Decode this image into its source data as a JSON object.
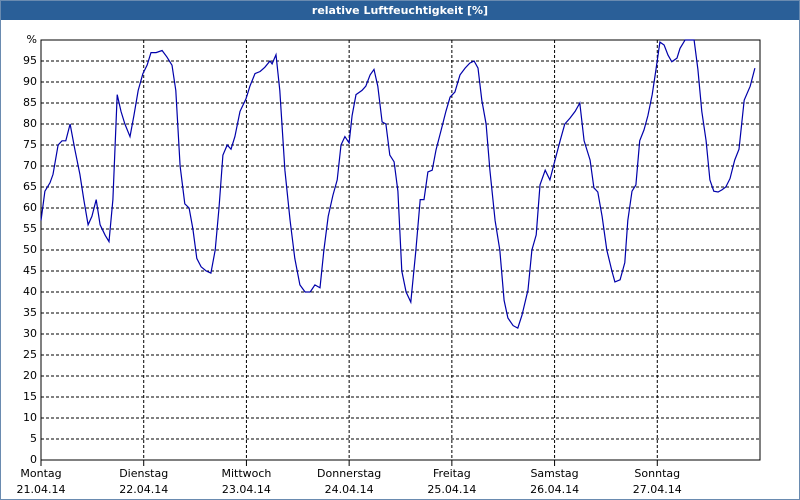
{
  "chart_data": {
    "type": "line",
    "title": "relative Luftfeuchtigkeit [%]",
    "color": "#0000aa",
    "grid": true,
    "xlim": [
      0,
      168
    ],
    "xticks": [
      {
        "value": 0,
        "label": [
          "Montag",
          "21.04.14"
        ]
      },
      {
        "value": 24,
        "label": [
          "Dienstag",
          "22.04.14"
        ]
      },
      {
        "value": 48,
        "label": [
          "Mittwoch",
          "23.04.14"
        ]
      },
      {
        "value": 72,
        "label": [
          "Donnerstag",
          "24.04.14"
        ]
      },
      {
        "value": 96,
        "label": [
          "Freitag",
          "25.04.14"
        ]
      },
      {
        "value": 120,
        "label": [
          "Samstag",
          "26.04.14"
        ]
      },
      {
        "value": 144,
        "label": [
          "Sonntag",
          "27.04.14"
        ]
      }
    ],
    "ylim": [
      0,
      100
    ],
    "yticks": [
      0,
      5,
      10,
      15,
      20,
      25,
      30,
      35,
      40,
      45,
      50,
      55,
      60,
      65,
      70,
      75,
      80,
      85,
      90,
      95,
      {
        "value": 100,
        "label": "%"
      }
    ],
    "x": [
      0,
      0.9,
      2.1,
      2.8,
      4.0,
      4.9,
      5.8,
      6.8,
      7.9,
      9.1,
      10.0,
      11.0,
      11.9,
      12.9,
      13.8,
      15.0,
      15.9,
      16.8,
      17.8,
      18.7,
      19.6,
      20.8,
      21.7,
      22.7,
      23.8,
      24.8,
      25.7,
      26.9,
      28.3,
      29.4,
      30.6,
      31.5,
      32.5,
      33.6,
      34.6,
      35.5,
      36.4,
      37.4,
      38.6,
      39.7,
      40.7,
      41.6,
      42.5,
      43.5,
      44.4,
      45.3,
      46.5,
      47.9,
      48.8,
      50.0,
      51.2,
      52.3,
      53.5,
      54.0,
      54.9,
      55.8,
      57.0,
      58.2,
      59.3,
      60.5,
      61.7,
      62.9,
      64.0,
      65.2,
      66.1,
      67.1,
      68.2,
      69.2,
      70.1,
      71.0,
      72.0,
      72.7,
      73.6,
      75.0,
      75.9,
      76.9,
      77.8,
      78.7,
      79.7,
      80.6,
      81.5,
      82.5,
      83.4,
      84.3,
      85.3,
      86.4,
      87.6,
      88.6,
      89.5,
      90.4,
      91.4,
      92.3,
      93.5,
      94.6,
      95.6,
      96.7,
      97.9,
      99.1,
      100.2,
      101.2,
      102.1,
      103.0,
      104.0,
      104.9,
      106.1,
      107.2,
      108.2,
      109.1,
      110.3,
      111.4,
      112.4,
      113.8,
      114.7,
      115.7,
      116.6,
      117.8,
      118.9,
      120.1,
      121.3,
      122.4,
      123.6,
      124.8,
      125.9,
      126.9,
      128.3,
      129.2,
      130.1,
      131.1,
      132.2,
      133.4,
      134.1,
      135.3,
      136.4,
      137.1,
      138.1,
      139.0,
      139.9,
      140.9,
      141.8,
      142.8,
      143.7,
      144.6,
      145.6,
      146.5,
      147.4,
      148.6,
      149.3,
      150.5,
      151.6,
      152.6,
      153.5,
      154.4,
      155.4,
      156.3,
      157.2,
      158.2,
      159.1,
      160.0,
      161.0,
      162.1,
      163.1,
      164.3,
      165.7,
      166.8
    ],
    "values": [
      57,
      64,
      66,
      68,
      75,
      76,
      76,
      80,
      74,
      68,
      62,
      56,
      58,
      62,
      56,
      53.5,
      52,
      62,
      87,
      83,
      80,
      77,
      82,
      88,
      92,
      94,
      97,
      97,
      97.5,
      96,
      94,
      88,
      70,
      61,
      60,
      55,
      48,
      46,
      45,
      44.5,
      50,
      60,
      72.6,
      75,
      74,
      77,
      83,
      86,
      89,
      92,
      92.5,
      93.5,
      95,
      94.3,
      96.5,
      88,
      69,
      57,
      48,
      41.7,
      40,
      40,
      41.7,
      41,
      50,
      58,
      63,
      66.7,
      75,
      77,
      75.5,
      82,
      87,
      88,
      89,
      91.7,
      93,
      89,
      80.5,
      80,
      72.6,
      71,
      64,
      45,
      40,
      37.6,
      50,
      62,
      62,
      68.6,
      69,
      73.8,
      78.6,
      83,
      86.4,
      87.6,
      91.7,
      93.3,
      94.5,
      95,
      93.3,
      85.7,
      80,
      69,
      57,
      50,
      38,
      33.8,
      32,
      31.4,
      34.5,
      40.5,
      50,
      53.6,
      65.5,
      69,
      66.7,
      71.4,
      76,
      80,
      81.4,
      83,
      85,
      76,
      71.4,
      64.8,
      63.8,
      58,
      50,
      45,
      42.4,
      42.9,
      47,
      57,
      64,
      65.5,
      76,
      78.6,
      82,
      87,
      93,
      99.5,
      98.8,
      96.4,
      94.8,
      95.7,
      98,
      100,
      100,
      100,
      93,
      83,
      76,
      66.7,
      64,
      63.8,
      64.3,
      65,
      67,
      71.4,
      74,
      85.7,
      89,
      93.3
    ]
  }
}
